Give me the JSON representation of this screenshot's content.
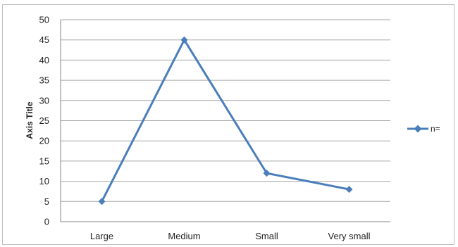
{
  "chart_data": {
    "type": "line",
    "categories": [
      "Large",
      "Medium",
      "Small",
      "Very small"
    ],
    "series": [
      {
        "name": "n=",
        "values": [
          5,
          45,
          12,
          8
        ]
      }
    ],
    "ylabel": "Axis Title",
    "ylim": [
      0,
      50
    ],
    "yticks": [
      "0",
      "5",
      "10",
      "15",
      "20",
      "25",
      "30",
      "35",
      "40",
      "45",
      "50"
    ],
    "grid": "horizontal",
    "legend": "right",
    "colors": {
      "series": "#4a7ebb",
      "grid": "#a6a6a6",
      "axis": "#868686"
    }
  }
}
